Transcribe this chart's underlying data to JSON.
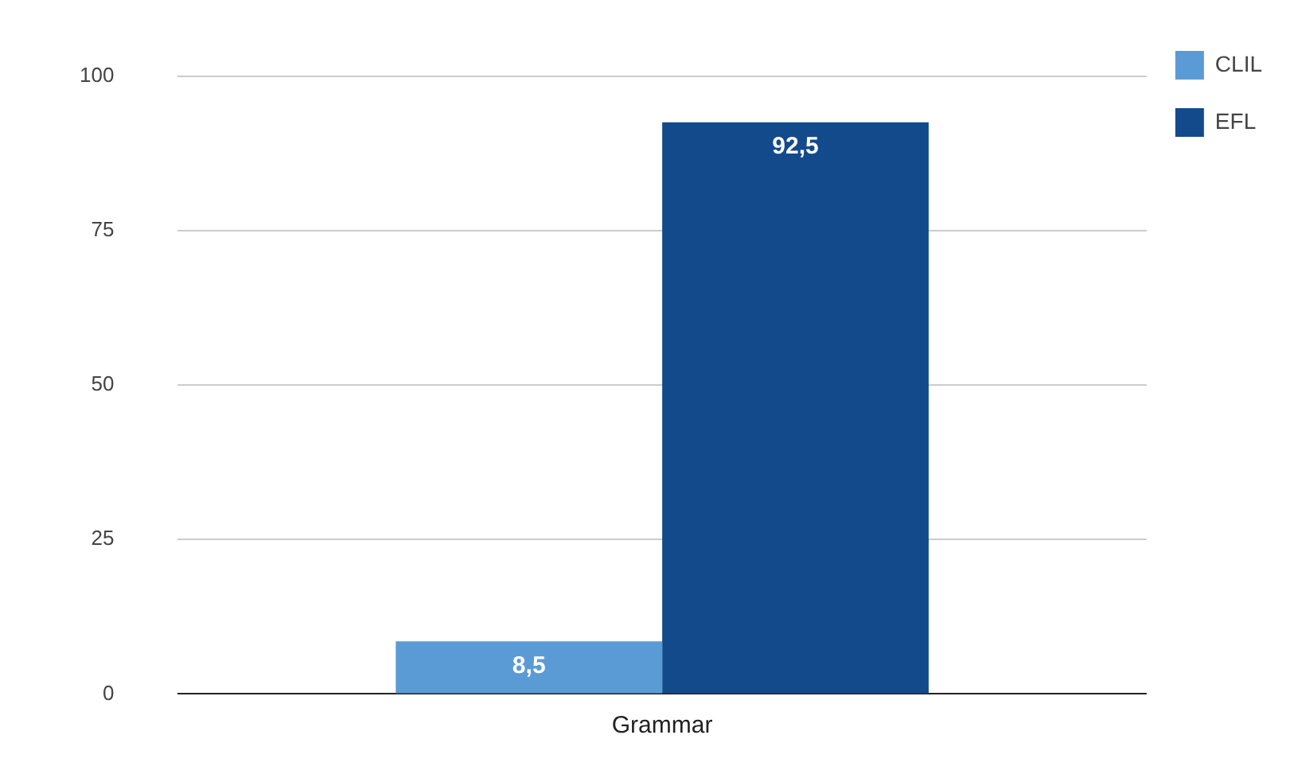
{
  "chart_data": {
    "type": "bar",
    "categories": [
      "Grammar"
    ],
    "series": [
      {
        "name": "CLIL",
        "color": "#5b9bd5",
        "values": [
          8.5
        ],
        "value_labels": [
          "8,5"
        ]
      },
      {
        "name": "EFL",
        "color": "#134a8c",
        "values": [
          92.5
        ],
        "value_labels": [
          "92,5"
        ]
      }
    ],
    "ylim": [
      0,
      100
    ],
    "yticks": [
      0,
      25,
      50,
      75,
      100
    ],
    "grid": "y",
    "legend": "top right"
  }
}
